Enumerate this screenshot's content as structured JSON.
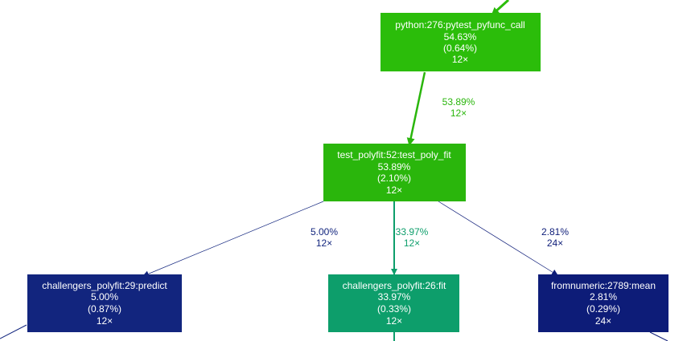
{
  "nodes": [
    {
      "id": "pytest_pyfunc_call",
      "name": "python:276:pytest_pyfunc_call",
      "total": "54.63%",
      "self": "(0.64%)",
      "calls": "12×",
      "color": "#2bbd0a"
    },
    {
      "id": "test_poly_fit",
      "name": "test_polyfit:52:test_poly_fit",
      "total": "53.89%",
      "self": "(2.10%)",
      "calls": "12×",
      "color": "#2ab60c"
    },
    {
      "id": "predict",
      "name": "challengers_polyfit:29:predict",
      "total": "5.00%",
      "self": "(0.87%)",
      "calls": "12×",
      "color": "#12257e"
    },
    {
      "id": "fit",
      "name": "challengers_polyfit:26:fit",
      "total": "33.97%",
      "self": "(0.33%)",
      "calls": "12×",
      "color": "#0d9e6b"
    },
    {
      "id": "mean",
      "name": "fromnumeric:2789:mean",
      "total": "2.81%",
      "self": "(0.29%)",
      "calls": "24×",
      "color": "#0d1c78"
    }
  ],
  "edges": [
    {
      "id": "pyfunc-to-testpolyfit",
      "from": "pytest_pyfunc_call",
      "to": "test_poly_fit",
      "percent": "53.89%",
      "calls": "12×",
      "color": "#2ab60c"
    },
    {
      "id": "testpolyfit-to-predict",
      "from": "test_poly_fit",
      "to": "predict",
      "percent": "5.00%",
      "calls": "12×",
      "color": "#12257e"
    },
    {
      "id": "testpolyfit-to-fit",
      "from": "test_poly_fit",
      "to": "fit",
      "percent": "33.97%",
      "calls": "12×",
      "color": "#0d9e6b"
    },
    {
      "id": "testpolyfit-to-mean",
      "from": "test_poly_fit",
      "to": "mean",
      "percent": "2.81%",
      "calls": "24×",
      "color": "#0d1c78"
    }
  ]
}
